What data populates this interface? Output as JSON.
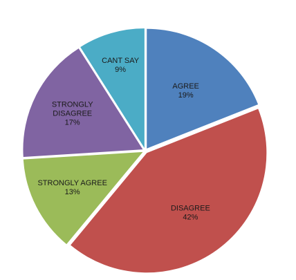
{
  "chart_data": {
    "type": "pie",
    "title": "",
    "slices": [
      {
        "name": "AGREE",
        "label_lines": [
          "AGREE"
        ],
        "value": 19,
        "percent_label": "19%",
        "color": "#4f81bd"
      },
      {
        "name": "DISAGREE",
        "label_lines": [
          "DISAGREE"
        ],
        "value": 42,
        "percent_label": "42%",
        "color": "#c0504d"
      },
      {
        "name": "STRONGLY AGREE",
        "label_lines": [
          "STRONGLY AGREE"
        ],
        "value": 13,
        "percent_label": "13%",
        "color": "#9bbb59"
      },
      {
        "name": "STRONGLY DISAGREE",
        "label_lines": [
          "STRONGLY",
          "DISAGREE"
        ],
        "value": 17,
        "percent_label": "17%",
        "color": "#8064a2"
      },
      {
        "name": "CANT SAY",
        "label_lines": [
          "CANT SAY"
        ],
        "value": 9,
        "percent_label": "9%",
        "color": "#4bacc6"
      }
    ],
    "start_angle": "12 o'clock",
    "direction": "clockwise",
    "exploded": true,
    "legend": "none",
    "data_labels": "inside"
  }
}
